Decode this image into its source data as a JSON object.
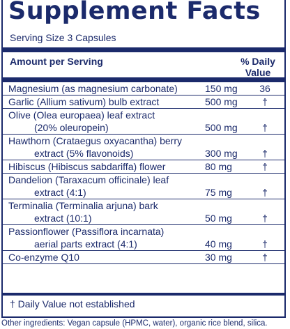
{
  "title": "Supplement Facts",
  "serving_size": "Serving Size 3 Capsules",
  "header": {
    "amount": "Amount per Serving",
    "dv_line1": "% Daily",
    "dv_line2": "Value"
  },
  "rows": [
    {
      "lines": [
        {
          "name": "Magnesium (as magnesium carbonate)",
          "amount": "150 mg",
          "dv": "36"
        }
      ]
    },
    {
      "lines": [
        {
          "name": "Garlic (Allium sativum) bulb extract",
          "amount": "500 mg",
          "dv": "†"
        }
      ]
    },
    {
      "lines": [
        {
          "name": "Olive (Olea europaea) leaf extract",
          "amount": "",
          "dv": ""
        },
        {
          "name": "(20% oleuropein)",
          "amount": "500 mg",
          "dv": "†",
          "indent": true
        }
      ]
    },
    {
      "lines": [
        {
          "name": "Hawthorn (Crataegus oxyacantha) berry",
          "amount": "",
          "dv": ""
        },
        {
          "name": "extract (5% flavonoids)",
          "amount": "300 mg",
          "dv": "†",
          "indent": true
        }
      ]
    },
    {
      "lines": [
        {
          "name": "Hibiscus (Hibiscus sabdariffa) flower",
          "amount": "80 mg",
          "dv": "†"
        }
      ]
    },
    {
      "lines": [
        {
          "name": "Dandelion (Taraxacum officinale) leaf",
          "amount": "",
          "dv": ""
        },
        {
          "name": "extract (4:1)",
          "amount": "75 mg",
          "dv": "†",
          "indent": true
        }
      ]
    },
    {
      "lines": [
        {
          "name": "Terminalia (Terminalia arjuna) bark",
          "amount": "",
          "dv": ""
        },
        {
          "name": "extract (10:1)",
          "amount": "50 mg",
          "dv": "†",
          "indent": true
        }
      ]
    },
    {
      "lines": [
        {
          "name": "Passionflower (Passiflora incarnata)",
          "amount": "",
          "dv": ""
        },
        {
          "name": "aerial parts extract (4:1)",
          "amount": "40 mg",
          "dv": "†",
          "indent": true
        }
      ]
    },
    {
      "lines": [
        {
          "name": "Co-enzyme Q10",
          "amount": "30 mg",
          "dv": "†"
        }
      ]
    }
  ],
  "footnote": "† Daily Value not established",
  "other_ingredients": "Other ingredients: Vegan capsule (HPMC, water), organic rice blend, silica.",
  "colors": {
    "ink": "#1b2a6b",
    "background": "#ffffff"
  }
}
